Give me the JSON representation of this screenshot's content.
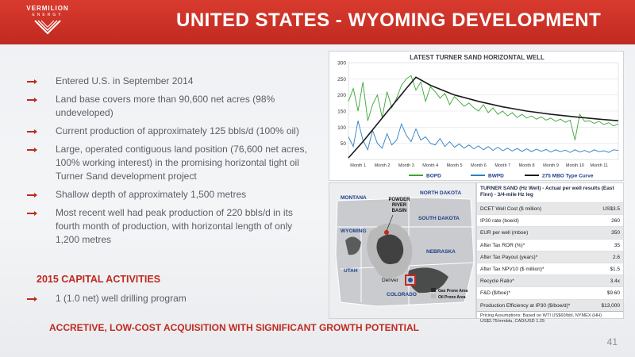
{
  "header": {
    "title": "UNITED STATES - WYOMING DEVELOPMENT",
    "logo_main": "VERMILION",
    "logo_sub": "ENERGY"
  },
  "bullets": [
    "Entered U.S. in September 2014",
    "Land base covers more than 90,600 net acres (98% undeveloped)",
    "Current production of approximately 125 bbls/d (100% oil)",
    "Large, operated contiguous land position (76,600 net acres, 100% working interest) in the promising horizontal tight oil Turner Sand development project",
    "Shallow depth of approximately 1,500 metres",
    "Most recent well had peak production of 220 bbls/d in its fourth month of production, with horizontal length of only 1,200 metres"
  ],
  "capital": {
    "heading": "2015 CAPITAL ACTIVITIES",
    "bullet": "1 (1.0 net) well drilling program"
  },
  "bottom_line": "ACCRETIVE, LOW-COST ACQUISITION WITH SIGNIFICANT GROWTH POTENTIAL",
  "page_number": "41",
  "chart_data": {
    "type": "line",
    "title": "LATEST TURNER SAND HORIZONTAL WELL",
    "categories": [
      "Month 1",
      "Month 2",
      "Month 3",
      "Month 4",
      "Month 5",
      "Month 6",
      "Month 7",
      "Month 8",
      "Month 9",
      "Month 10",
      "Month 11"
    ],
    "yticks": [
      50,
      100,
      150,
      200,
      250,
      300
    ],
    "ylim": [
      0,
      300
    ],
    "xlim": [
      0.6,
      11.8
    ],
    "series": [
      {
        "name": "BOPD",
        "color": "#3aa635",
        "x": [
          0.6,
          0.8,
          1.0,
          1.2,
          1.4,
          1.6,
          1.8,
          2.0,
          2.2,
          2.4,
          2.6,
          2.8,
          3.0,
          3.2,
          3.4,
          3.6,
          3.8,
          4.0,
          4.2,
          4.4,
          4.6,
          4.8,
          5.0,
          5.2,
          5.4,
          5.6,
          5.8,
          6.0,
          6.2,
          6.4,
          6.6,
          6.8,
          7.0,
          7.2,
          7.4,
          7.6,
          7.8,
          8.0,
          8.2,
          8.4,
          8.6,
          8.8,
          9.0,
          9.2,
          9.4,
          9.6,
          9.8,
          10.0,
          10.2,
          10.4,
          10.6,
          10.8,
          11.0,
          11.2,
          11.4,
          11.6,
          11.8
        ],
        "values": [
          180,
          220,
          150,
          240,
          120,
          170,
          200,
          130,
          210,
          160,
          190,
          230,
          250,
          260,
          215,
          240,
          180,
          225,
          210,
          190,
          205,
          170,
          195,
          180,
          165,
          175,
          160,
          150,
          170,
          145,
          160,
          140,
          150,
          135,
          145,
          130,
          140,
          128,
          135,
          125,
          132,
          122,
          128,
          118,
          125,
          115,
          122,
          60,
          140,
          118,
          120,
          112,
          118,
          108,
          114,
          104,
          110
        ]
      },
      {
        "name": "BWPD",
        "color": "#2a7fc4",
        "x": [
          0.6,
          0.8,
          1.0,
          1.2,
          1.4,
          1.6,
          1.8,
          2.0,
          2.2,
          2.4,
          2.6,
          2.8,
          3.0,
          3.2,
          3.4,
          3.6,
          3.8,
          4.0,
          4.2,
          4.4,
          4.6,
          4.8,
          5.0,
          5.2,
          5.4,
          5.6,
          5.8,
          6.0,
          6.2,
          6.4,
          6.6,
          6.8,
          7.0,
          7.2,
          7.4,
          7.6,
          7.8,
          8.0,
          8.2,
          8.4,
          8.6,
          8.8,
          9.0,
          9.2,
          9.4,
          9.6,
          9.8,
          10.0,
          10.2,
          10.4,
          10.6,
          10.8,
          11.0,
          11.2,
          11.4,
          11.6,
          11.8
        ],
        "values": [
          70,
          40,
          120,
          60,
          30,
          90,
          50,
          35,
          80,
          45,
          60,
          110,
          75,
          55,
          95,
          60,
          70,
          50,
          45,
          65,
          40,
          55,
          38,
          48,
          35,
          45,
          33,
          42,
          30,
          40,
          28,
          38,
          27,
          35,
          26,
          34,
          25,
          33,
          24,
          32,
          25,
          31,
          23,
          30,
          24,
          29,
          22,
          30,
          23,
          28,
          22,
          30,
          24,
          27,
          22,
          30,
          28
        ]
      },
      {
        "name": "275 MBO Type Curve",
        "color": "#1a1a1a",
        "x": [
          0.6,
          1.2,
          1.8,
          2.4,
          3.0,
          3.4,
          4.0,
          5.0,
          6.0,
          7.0,
          8.0,
          9.0,
          10.0,
          11.0,
          11.8
        ],
        "values": [
          5,
          55,
          110,
          165,
          220,
          255,
          230,
          200,
          180,
          163,
          150,
          140,
          132,
          125,
          120
        ]
      }
    ]
  },
  "map": {
    "states": [
      "MONTANA",
      "NORTH DAKOTA",
      "SOUTH DAKOTA",
      "WYOMING",
      "NEBRASKA",
      "UTAH",
      "COLORADO"
    ],
    "basin_label_lines": [
      "POWDER",
      "RIVER",
      "BASIN"
    ],
    "city": "Denver",
    "legend": [
      {
        "label": "Gas Prone Area",
        "color": "#2b2b2b"
      },
      {
        "label": "Oil Prone Area",
        "color": "#b9b9b9"
      }
    ]
  },
  "table": {
    "heading": "TURNER SAND (Hz Well) - Actual per well results (East Finn) - 3/4-mile Hz leg",
    "rows": [
      {
        "label": "DCET Well Cost ($ million)",
        "value": "US$3.5"
      },
      {
        "label": "IP30 rate (boe/d)",
        "value": "260"
      },
      {
        "label": "EUR per well (mboe)",
        "value": "350"
      },
      {
        "label": "After Tax ROR (%)*",
        "value": "35"
      },
      {
        "label": "After Tax Payout (years)*",
        "value": "2.6"
      },
      {
        "label": "After Tax NPV10 ($ million)*",
        "value": "$1.5"
      },
      {
        "label": "Recycle Ratio*",
        "value": "3.4x"
      },
      {
        "label": "F&D ($/boe)*",
        "value": "$9.60"
      },
      {
        "label": "Production Efficiency at IP30 ($/boe/d)*",
        "value": "$13,000"
      }
    ],
    "note": "Pricing Assumptions: Based on WTI US$60/bbl, NYMEX (HH) US$2.75/mmbtu, CAD/USD 1.25"
  }
}
